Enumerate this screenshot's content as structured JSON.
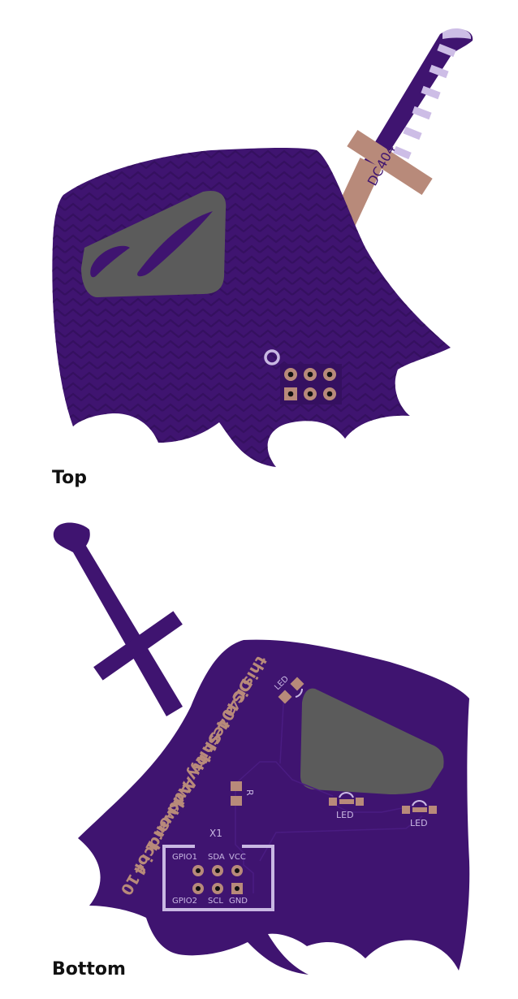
{
  "views": {
    "top": {
      "caption": "Top",
      "sword_label": "DC404"
    },
    "bottom": {
      "caption": "Bottom",
      "silk_text_line1": "this is a test by Awkwardci 4",
      "silk_text_line2": "DC404 Shitty Add-on 1 of 10",
      "led_label": "LED",
      "resistor_label": "R",
      "connector_label": "X1",
      "pins": {
        "gpio1": "GPIO1",
        "sda": "SDA",
        "vcc": "VCC",
        "gpio2": "GPIO2",
        "scl": "SCL",
        "gnd": "GND"
      }
    }
  },
  "colors": {
    "board": "#3f1470",
    "board_dark": "#351060",
    "copper_pad": "#b88a7a",
    "silk": "#c9b8e3",
    "window": "#5b5b5b",
    "sword_stripe": "#cdbde6"
  }
}
